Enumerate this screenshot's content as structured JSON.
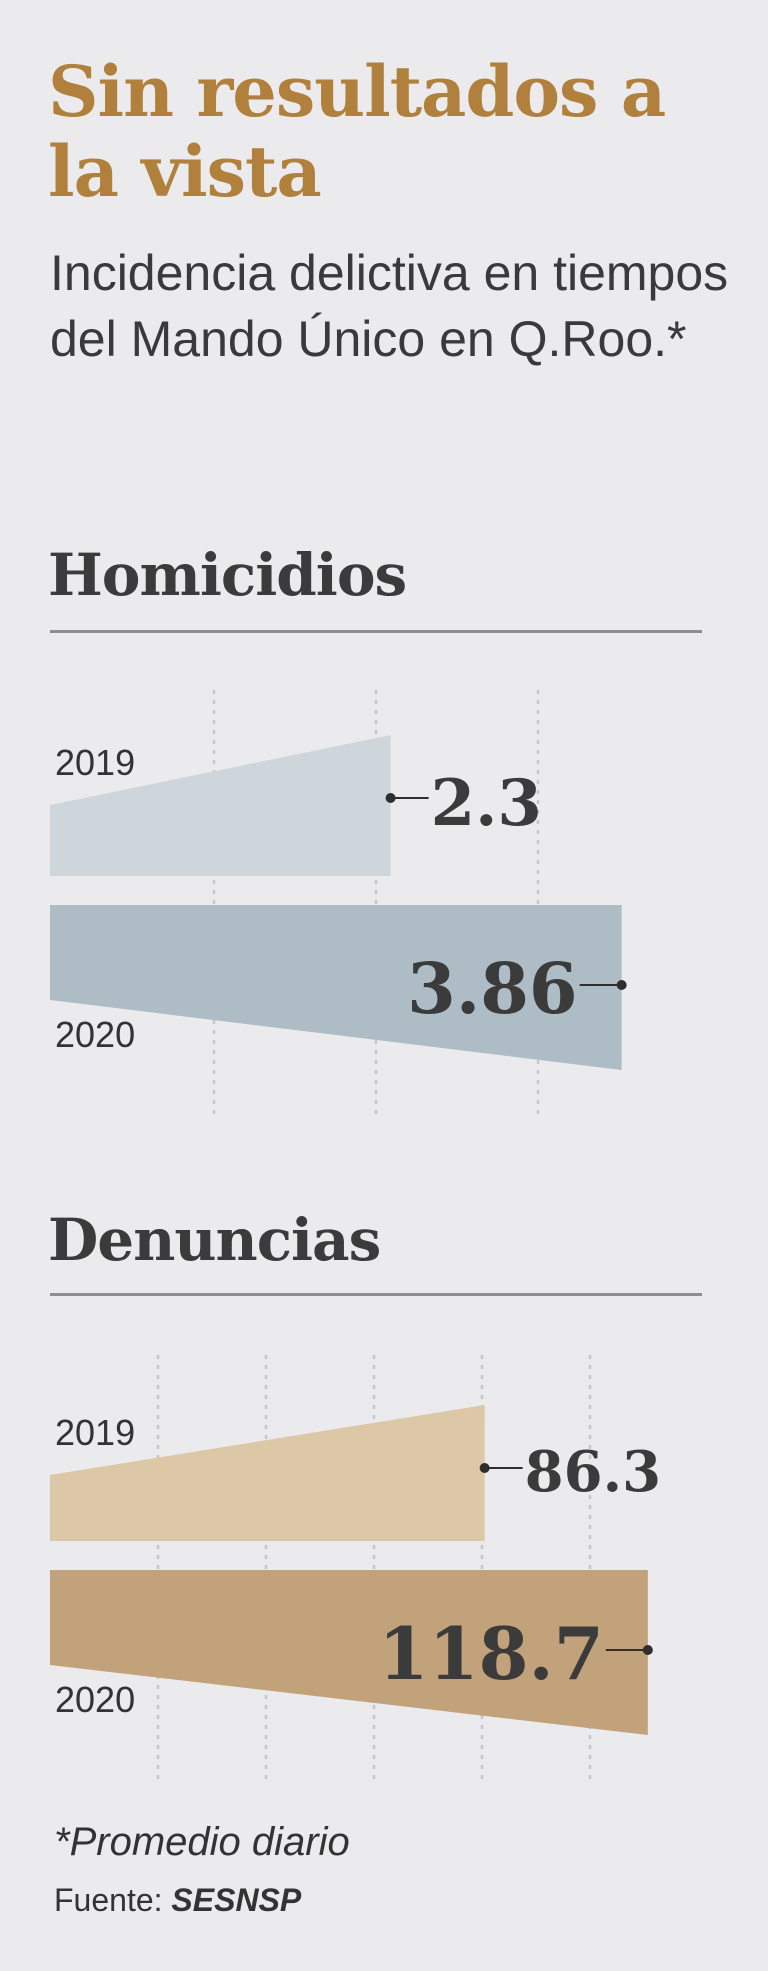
{
  "title": "Sin resultados a la vista",
  "subtitle": "Incidencia delictiva en tiempos del Mando Único en Q.Roo.*",
  "colors": {
    "title": "#b0803c",
    "homicidios_2019": "#ced6dc",
    "homicidios_2020": "#aebcc6",
    "denuncias_2019": "#dcc7a6",
    "denuncias_2020": "#c2a27a"
  },
  "footnote": "*Promedio diario",
  "source_label": "Fuente:",
  "source_name": "SESNSP",
  "chart_data": [
    {
      "type": "bar",
      "title": "Homicidios",
      "categories": [
        "2019",
        "2020"
      ],
      "values": [
        2.3,
        3.86
      ],
      "value_labels": [
        "2.3",
        "3.86"
      ],
      "xlim": [
        0,
        4.2
      ],
      "grid": true
    },
    {
      "type": "bar",
      "title": "Denuncias",
      "categories": [
        "2019",
        "2020"
      ],
      "values": [
        86.3,
        118.7
      ],
      "value_labels": [
        "86.3",
        "118.7"
      ],
      "xlim": [
        0,
        123.5
      ],
      "grid": true
    }
  ]
}
